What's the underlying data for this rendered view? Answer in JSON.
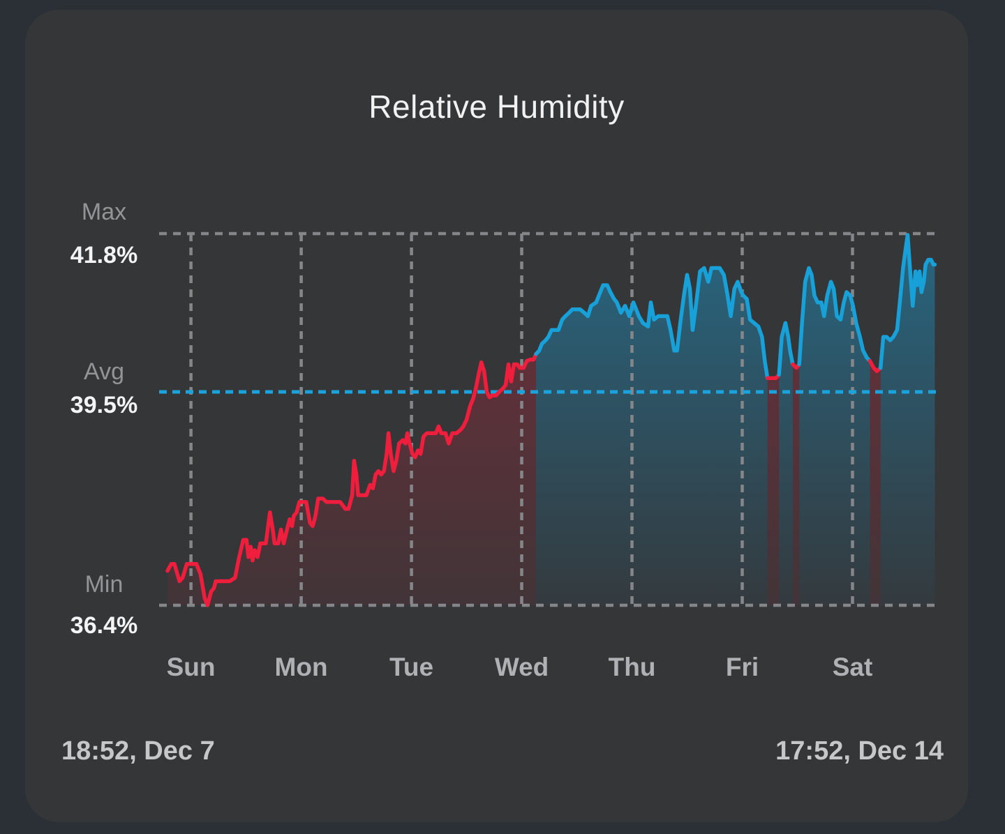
{
  "card": {
    "title": "Relative Humidity",
    "footer_left": "18:52, Dec 7",
    "footer_right": "17:52, Dec 14"
  },
  "colors": {
    "background_outer": "#2b3036",
    "card_background": "#353638",
    "line_blue": "#18a0d8",
    "line_red": "#ee1e3c",
    "avg_line": "#1aa3dc",
    "grid": "#85868a",
    "title_text": "#f1f1f2",
    "label_text": "#939498",
    "value_text": "#f4f4f5",
    "day_text": "#b0b1b4",
    "footer_text": "#c6c7c9"
  },
  "chart_data": {
    "type": "line",
    "title": "Relative Humidity",
    "unit": "%",
    "x_start_label": "18:52, Dec 7",
    "x_end_label": "17:52, Dec 14",
    "duration_hours": 167,
    "ylim": [
      36.4,
      41.8
    ],
    "grid": "dashed",
    "y_markers": [
      {
        "label": "Max",
        "value": 41.8,
        "display": "41.8%"
      },
      {
        "label": "Avg",
        "value": 39.5,
        "display": "39.5%"
      },
      {
        "label": "Min",
        "value": 36.4,
        "display": "36.4%"
      }
    ],
    "x_ticks": [
      {
        "label": "Sun",
        "hour": 5.1
      },
      {
        "label": "Mon",
        "hour": 29.1
      },
      {
        "label": "Tue",
        "hour": 53.1
      },
      {
        "label": "Wed",
        "hour": 77.1
      },
      {
        "label": "Thu",
        "hour": 101.1
      },
      {
        "label": "Fri",
        "hour": 125.1
      },
      {
        "label": "Sat",
        "hour": 149.1
      }
    ],
    "red_ranges": [
      [
        -0.5,
        80.0
      ],
      [
        130.4,
        133.3
      ],
      [
        135.9,
        137.7
      ],
      [
        153.2,
        155.4
      ]
    ],
    "points": [
      [
        0,
        36.9
      ],
      [
        0.8,
        37.0
      ],
      [
        1.5,
        37.0
      ],
      [
        2.6,
        36.75
      ],
      [
        3.3,
        36.8
      ],
      [
        4.2,
        37.0
      ],
      [
        5.3,
        37.0
      ],
      [
        6.3,
        37.0
      ],
      [
        7.2,
        36.85
      ],
      [
        8.1,
        36.5
      ],
      [
        8.7,
        36.4
      ],
      [
        9.5,
        36.6
      ],
      [
        10.1,
        36.65
      ],
      [
        10.5,
        36.75
      ],
      [
        12,
        36.75
      ],
      [
        13.5,
        36.75
      ],
      [
        14.7,
        36.8
      ],
      [
        15.6,
        37.1
      ],
      [
        16.5,
        37.35
      ],
      [
        17.2,
        37.35
      ],
      [
        17.6,
        37.1
      ],
      [
        18.1,
        37.25
      ],
      [
        18.5,
        37.05
      ],
      [
        19,
        37.2
      ],
      [
        19.6,
        37.1
      ],
      [
        20.2,
        37.3
      ],
      [
        20.8,
        37.3
      ],
      [
        21.4,
        37.3
      ],
      [
        22,
        37.6
      ],
      [
        22.3,
        37.75
      ],
      [
        22.9,
        37.5
      ],
      [
        23.3,
        37.3
      ],
      [
        24.1,
        37.3
      ],
      [
        24.7,
        37.5
      ],
      [
        25.3,
        37.3
      ],
      [
        26,
        37.5
      ],
      [
        26.6,
        37.65
      ],
      [
        27.1,
        37.55
      ],
      [
        27.5,
        37.7
      ],
      [
        28.1,
        37.75
      ],
      [
        28.7,
        37.9
      ],
      [
        29.5,
        37.9
      ],
      [
        30.2,
        37.9
      ],
      [
        31,
        37.6
      ],
      [
        31.6,
        37.55
      ],
      [
        32.2,
        37.7
      ],
      [
        32.8,
        37.95
      ],
      [
        33.8,
        37.95
      ],
      [
        34.6,
        37.9
      ],
      [
        36.1,
        37.9
      ],
      [
        37.6,
        37.9
      ],
      [
        38.7,
        37.8
      ],
      [
        39.4,
        37.8
      ],
      [
        40.2,
        38.0
      ],
      [
        40.6,
        38.5
      ],
      [
        41.1,
        38.3
      ],
      [
        41.5,
        38.0
      ],
      [
        42.4,
        38.0
      ],
      [
        43.3,
        38.0
      ],
      [
        44.1,
        38.15
      ],
      [
        44.7,
        38.1
      ],
      [
        45.3,
        38.3
      ],
      [
        45.9,
        38.35
      ],
      [
        46.5,
        38.3
      ],
      [
        47.1,
        38.35
      ],
      [
        47.7,
        38.6
      ],
      [
        48.1,
        38.9
      ],
      [
        48.6,
        38.6
      ],
      [
        49.2,
        38.35
      ],
      [
        49.8,
        38.5
      ],
      [
        50.4,
        38.75
      ],
      [
        51.2,
        38.8
      ],
      [
        51.8,
        38.75
      ],
      [
        52.2,
        38.9
      ],
      [
        52.7,
        38.75
      ],
      [
        53.3,
        38.6
      ],
      [
        53.9,
        38.55
      ],
      [
        54.5,
        38.65
      ],
      [
        55.1,
        38.6
      ],
      [
        55.7,
        38.85
      ],
      [
        56.4,
        38.9
      ],
      [
        57.5,
        38.9
      ],
      [
        58.4,
        38.9
      ],
      [
        59,
        39.0
      ],
      [
        59.6,
        38.9
      ],
      [
        60.5,
        38.9
      ],
      [
        61.2,
        38.75
      ],
      [
        62,
        38.9
      ],
      [
        62.9,
        38.9
      ],
      [
        63.8,
        38.95
      ],
      [
        64.4,
        39.0
      ],
      [
        65.1,
        39.1
      ],
      [
        65.9,
        39.3
      ],
      [
        66.5,
        39.4
      ],
      [
        67.1,
        39.55
      ],
      [
        67.7,
        39.75
      ],
      [
        68.3,
        39.93
      ],
      [
        68.9,
        39.8
      ],
      [
        69.5,
        39.5
      ],
      [
        70.1,
        39.42
      ],
      [
        70.7,
        39.45
      ],
      [
        71.5,
        39.45
      ],
      [
        72.2,
        39.5
      ],
      [
        73,
        39.55
      ],
      [
        73.6,
        39.6
      ],
      [
        74.2,
        39.9
      ],
      [
        74.8,
        39.65
      ],
      [
        75.4,
        39.9
      ],
      [
        76.1,
        39.9
      ],
      [
        76.7,
        39.85
      ],
      [
        77.5,
        39.85
      ],
      [
        78.2,
        39.95
      ],
      [
        79,
        39.97
      ],
      [
        79.7,
        39.97
      ],
      [
        80.2,
        40.05
      ],
      [
        80.9,
        40.1
      ],
      [
        81.5,
        40.2
      ],
      [
        82.3,
        40.25
      ],
      [
        82.9,
        40.3
      ],
      [
        83.6,
        40.4
      ],
      [
        84.4,
        40.4
      ],
      [
        85.1,
        40.4
      ],
      [
        85.9,
        40.55
      ],
      [
        86.6,
        40.6
      ],
      [
        87.4,
        40.65
      ],
      [
        88.1,
        40.7
      ],
      [
        88.9,
        40.7
      ],
      [
        89.8,
        40.7
      ],
      [
        90.7,
        40.65
      ],
      [
        91.5,
        40.6
      ],
      [
        92.2,
        40.75
      ],
      [
        93.3,
        40.8
      ],
      [
        94.2,
        40.95
      ],
      [
        94.8,
        41.05
      ],
      [
        95.7,
        41.05
      ],
      [
        96.4,
        40.95
      ],
      [
        97.2,
        40.85
      ],
      [
        97.8,
        40.8
      ],
      [
        98.7,
        40.65
      ],
      [
        99.6,
        40.75
      ],
      [
        100.5,
        40.6
      ],
      [
        101.4,
        40.8
      ],
      [
        102.6,
        40.6
      ],
      [
        103.5,
        40.5
      ],
      [
        104.6,
        40.45
      ],
      [
        105.2,
        40.8
      ],
      [
        105.9,
        40.55
      ],
      [
        106.8,
        40.6
      ],
      [
        107.9,
        40.6
      ],
      [
        108.8,
        40.6
      ],
      [
        109.5,
        40.4
      ],
      [
        110.3,
        40.1
      ],
      [
        110.9,
        40.1
      ],
      [
        111.6,
        40.5
      ],
      [
        112.4,
        40.9
      ],
      [
        113.1,
        41.2
      ],
      [
        113.7,
        41.0
      ],
      [
        114.3,
        40.4
      ],
      [
        115.1,
        40.8
      ],
      [
        115.9,
        41.25
      ],
      [
        116.8,
        41.3
      ],
      [
        117.7,
        41.1
      ],
      [
        118.4,
        41.3
      ],
      [
        119.3,
        41.3
      ],
      [
        120.2,
        41.3
      ],
      [
        121.1,
        41.2
      ],
      [
        121.9,
        40.9
      ],
      [
        122.6,
        40.6
      ],
      [
        123.4,
        41.0
      ],
      [
        124.1,
        41.1
      ],
      [
        124.9,
        40.95
      ],
      [
        125.3,
        40.9
      ],
      [
        126.1,
        40.85
      ],
      [
        126.8,
        40.55
      ],
      [
        127.7,
        40.5
      ],
      [
        128.6,
        40.45
      ],
      [
        129.4,
        40.3
      ],
      [
        130,
        39.95
      ],
      [
        130.6,
        39.7
      ],
      [
        131.5,
        39.7
      ],
      [
        132.4,
        39.7
      ],
      [
        133.1,
        39.75
      ],
      [
        133.7,
        40.3
      ],
      [
        134.5,
        40.5
      ],
      [
        135.1,
        40.3
      ],
      [
        135.5,
        40.1
      ],
      [
        136.1,
        39.9
      ],
      [
        136.9,
        39.85
      ],
      [
        137.5,
        39.9
      ],
      [
        138.1,
        40.5
      ],
      [
        138.8,
        41.1
      ],
      [
        139.6,
        41.3
      ],
      [
        140.2,
        41.2
      ],
      [
        140.8,
        40.9
      ],
      [
        141.5,
        40.8
      ],
      [
        142.3,
        40.8
      ],
      [
        142.9,
        40.6
      ],
      [
        143.6,
        40.9
      ],
      [
        144.4,
        41.1
      ],
      [
        145,
        41.0
      ],
      [
        145.7,
        40.6
      ],
      [
        146.5,
        40.55
      ],
      [
        147.2,
        40.8
      ],
      [
        147.8,
        40.95
      ],
      [
        148.6,
        40.9
      ],
      [
        149.2,
        40.75
      ],
      [
        149.9,
        40.5
      ],
      [
        150.7,
        40.3
      ],
      [
        151.4,
        40.1
      ],
      [
        152.2,
        40.0
      ],
      [
        152.9,
        39.95
      ],
      [
        153.7,
        39.85
      ],
      [
        154.4,
        39.8
      ],
      [
        155.2,
        39.85
      ],
      [
        155.8,
        40.3
      ],
      [
        156.5,
        40.3
      ],
      [
        157.3,
        40.25
      ],
      [
        158,
        40.3
      ],
      [
        158.8,
        40.4
      ],
      [
        159.4,
        40.8
      ],
      [
        160.1,
        41.3
      ],
      [
        160.7,
        41.6
      ],
      [
        161.1,
        41.78
      ],
      [
        161.7,
        41.2
      ],
      [
        162.2,
        40.75
      ],
      [
        162.8,
        41.25
      ],
      [
        163.2,
        41.05
      ],
      [
        163.7,
        41.25
      ],
      [
        164.1,
        40.95
      ],
      [
        164.6,
        41.1
      ],
      [
        165,
        41.35
      ],
      [
        165.6,
        41.42
      ],
      [
        166.2,
        41.42
      ],
      [
        166.7,
        41.35
      ],
      [
        167,
        41.35
      ]
    ]
  }
}
